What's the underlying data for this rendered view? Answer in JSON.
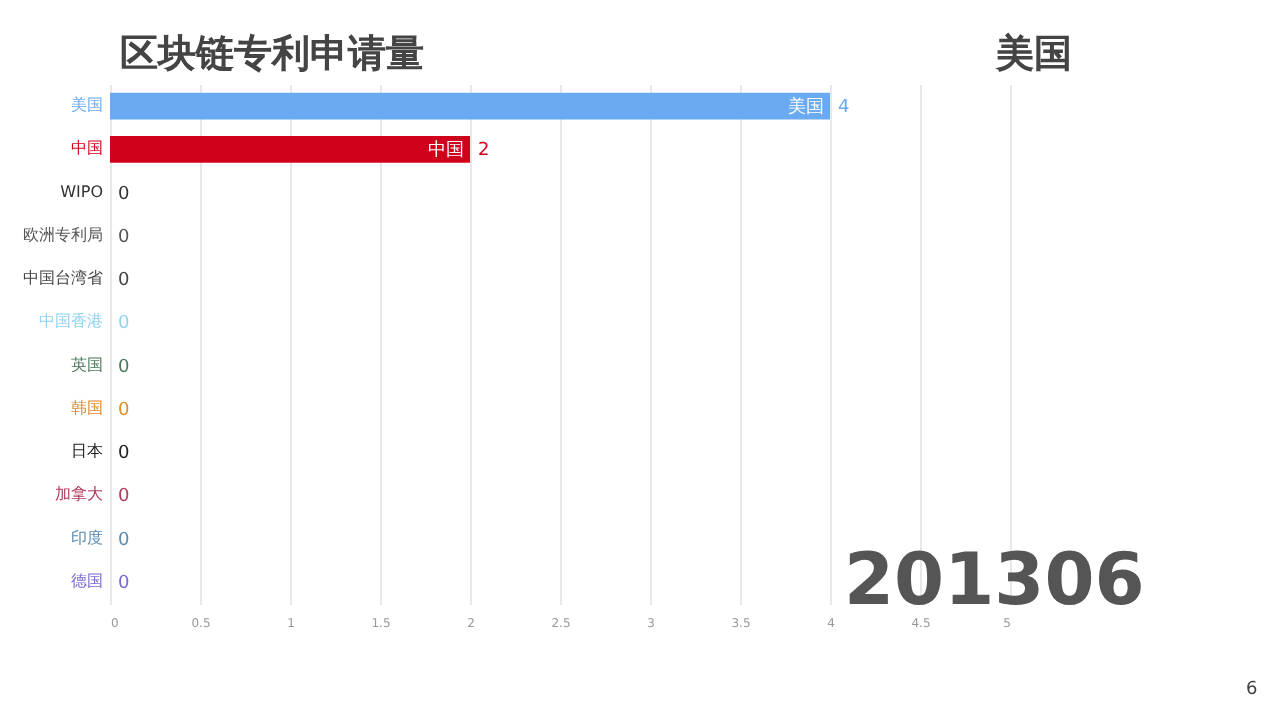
{
  "chart_data": {
    "type": "bar",
    "orientation": "horizontal",
    "title": "区块链专利申请量",
    "categories": [
      "美国",
      "中国",
      "WIPO",
      "欧洲专利局",
      "中国台湾省",
      "中国香港",
      "英国",
      "韩国",
      "日本",
      "加拿大",
      "印度",
      "德国"
    ],
    "values": [
      4,
      2,
      0,
      0,
      0,
      0,
      0,
      0,
      0,
      0,
      0,
      0
    ],
    "colors": [
      "#6aaaf0",
      "#d0021b",
      "#333333",
      "#555555",
      "#444444",
      "#8fd3f0",
      "#4a7a5a",
      "#e08a2a",
      "#222222",
      "#b03a5a",
      "#5a8ab0",
      "#7a6ad0"
    ],
    "xlim": [
      0,
      5
    ],
    "xticks": [
      0,
      0.5,
      1,
      1.5,
      2,
      2.5,
      3,
      3.5,
      4,
      4.5,
      5
    ],
    "grid": "x",
    "data_labels": true,
    "annotations": [
      "美国",
      "201306",
      "6"
    ]
  }
}
